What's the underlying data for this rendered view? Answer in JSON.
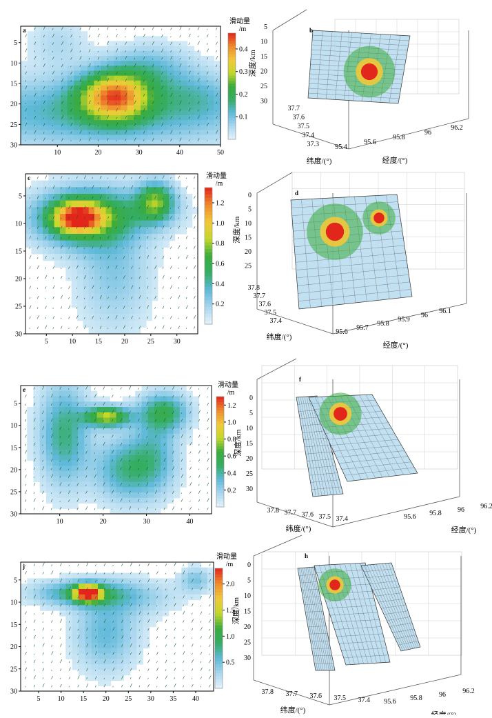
{
  "colors": {
    "colormap": [
      "#e6f3fb",
      "#a9d6ee",
      "#5fb9d9",
      "#35ad63",
      "#3aab3c",
      "#c6d82a",
      "#f1c83a",
      "#ee8a2c",
      "#e2261c"
    ],
    "grid": "#cfcfcf",
    "frame": "#000000",
    "arrow": "#1a5c2e"
  },
  "chart_data": [
    {
      "type": "heatmap",
      "label": "a",
      "x_ticks": [
        "10",
        "20",
        "30",
        "40",
        "50"
      ],
      "y_ticks": [
        "5",
        "10",
        "15",
        "20",
        "25",
        "30"
      ],
      "xlim": [
        1,
        50
      ],
      "ylim": [
        30,
        1
      ],
      "colorbar": {
        "title": "滑动量",
        "unit": "/m",
        "ticks": [
          "0.1",
          "0.2",
          "0.3",
          "0.4"
        ],
        "range": [
          0,
          0.47
        ]
      },
      "patches": [
        {
          "x": 20,
          "y": 22,
          "sx": 28,
          "sy": 6,
          "peak": 0.14
        },
        {
          "x": 33,
          "y": 11,
          "sx": 7,
          "sy": 4,
          "peak": 0.09
        },
        {
          "x": 10,
          "y": 5,
          "sx": 5,
          "sy": 4,
          "peak": 0.05
        },
        {
          "x": 44,
          "y": 18,
          "sx": 6,
          "sy": 4,
          "peak": 0.06
        },
        {
          "x": 24,
          "y": 18,
          "sx": 6,
          "sy": 4.2,
          "peak": 0.34
        }
      ]
    },
    {
      "type": "heatmap",
      "label": "c",
      "x_ticks": [
        "5",
        "10",
        "15",
        "20",
        "25",
        "30"
      ],
      "y_ticks": [
        "5",
        "10",
        "15",
        "20",
        "25",
        "30"
      ],
      "xlim": [
        1,
        34
      ],
      "ylim": [
        30,
        1
      ],
      "colorbar": {
        "title": "滑动量",
        "unit": "/m",
        "ticks": [
          "0.2",
          "0.4",
          "0.6",
          "0.8",
          "1.0",
          "1.2"
        ],
        "range": [
          0,
          1.35
        ]
      },
      "patches": [
        {
          "x": 11,
          "y": 9,
          "sx": 6,
          "sy": 3.5,
          "peak": 0.7
        },
        {
          "x": 11,
          "y": 9,
          "sx": 3,
          "sy": 1.8,
          "peak": 0.75
        },
        {
          "x": 26,
          "y": 6,
          "sx": 2.5,
          "sy": 2.5,
          "peak": 0.65
        },
        {
          "x": 18,
          "y": 18,
          "sx": 5,
          "sy": 8,
          "peak": 0.25
        },
        {
          "x": 20,
          "y": 8,
          "sx": 8,
          "sy": 3,
          "peak": 0.2
        }
      ]
    },
    {
      "type": "heatmap",
      "label": "e",
      "x_ticks": [
        "10",
        "20",
        "30",
        "40"
      ],
      "y_ticks": [
        "5",
        "10",
        "15",
        "20",
        "25",
        "30"
      ],
      "xlim": [
        1,
        45
      ],
      "ylim": [
        30,
        1
      ],
      "colorbar": {
        "title": "滑动量",
        "unit": "/m",
        "ticks": [
          "0.2",
          "0.4",
          "0.6",
          "0.8",
          "1.0",
          "1.2"
        ],
        "range": [
          0,
          1.3
        ]
      },
      "patches": [
        {
          "x": 21,
          "y": 8,
          "sx": 3.5,
          "sy": 1.6,
          "peak": 0.8
        },
        {
          "x": 11,
          "y": 12,
          "sx": 4,
          "sy": 8,
          "peak": 0.45
        },
        {
          "x": 25,
          "y": 20,
          "sx": 5,
          "sy": 5,
          "peak": 0.4
        },
        {
          "x": 34,
          "y": 7,
          "sx": 4,
          "sy": 3,
          "peak": 0.5
        },
        {
          "x": 32,
          "y": 17,
          "sx": 4,
          "sy": 6,
          "peak": 0.3
        }
      ]
    },
    {
      "type": "heatmap",
      "label": "j",
      "x_ticks": [
        "5",
        "10",
        "15",
        "20",
        "25",
        "30",
        "35",
        "40"
      ],
      "y_ticks": [
        "5",
        "10",
        "15",
        "20",
        "25",
        "30"
      ],
      "xlim": [
        1,
        44
      ],
      "ylim": [
        30,
        1
      ],
      "colorbar": {
        "title": "滑动量",
        "unit": "/m",
        "ticks": [
          "0.5",
          "1.0",
          "1.5",
          "2.0"
        ],
        "range": [
          0,
          2.3
        ]
      },
      "patches": [
        {
          "x": 16,
          "y": 8,
          "sx": 2,
          "sy": 1.3,
          "peak": 1.9
        },
        {
          "x": 14,
          "y": 8,
          "sx": 7,
          "sy": 2,
          "peak": 0.8
        },
        {
          "x": 20,
          "y": 17,
          "sx": 5,
          "sy": 6,
          "peak": 0.55
        },
        {
          "x": 40,
          "y": 5,
          "sx": 2.5,
          "sy": 2,
          "peak": 0.45
        },
        {
          "x": 27,
          "y": 9,
          "sx": 7,
          "sy": 3,
          "peak": 0.3
        }
      ]
    }
  ],
  "panels3d": [
    {
      "label": "b",
      "ylabel": "深度/km",
      "depth_ticks": [
        "5",
        "10",
        "15",
        "20",
        "25",
        "30"
      ],
      "lat_label": "纬度/(°)",
      "lat_ticks": [
        "37.7",
        "37.6",
        "37.5",
        "37.4",
        "37.3"
      ],
      "lon_label": "经度/(°)",
      "lon_ticks": [
        "95.4",
        "95.6",
        "95.8",
        "96",
        "96.2"
      ]
    },
    {
      "label": "d",
      "ylabel": "深度/km",
      "depth_ticks": [
        "0",
        "5",
        "10",
        "15",
        "20",
        "25"
      ],
      "lat_label": "纬度/(°)",
      "lat_ticks": [
        "37.8",
        "37.7",
        "37.6",
        "37.5",
        "37.4"
      ],
      "lon_label": "经度/(°)",
      "lon_ticks": [
        "95.6",
        "95.7",
        "95.8",
        "95.9",
        "96",
        "96.1"
      ]
    },
    {
      "label": "f",
      "ylabel": "深度/km",
      "depth_ticks": [
        "0",
        "5",
        "10",
        "15",
        "20",
        "25",
        "30"
      ],
      "lat_label": "纬度/(°)",
      "lat_ticks": [
        "37.8",
        "37.7",
        "37.6",
        "37.5",
        "37.4"
      ],
      "lon_label": "经度/(°)",
      "lon_ticks": [
        "95.6",
        "95.8",
        "96",
        "96.2"
      ]
    },
    {
      "label": "h",
      "ylabel": "深度/km",
      "depth_ticks": [
        "0",
        "5",
        "10",
        "15",
        "20",
        "25",
        "30"
      ],
      "lat_label": "纬度/(°)",
      "lat_ticks": [
        "37.8",
        "37.7",
        "37.6",
        "37.5",
        "37.4"
      ],
      "lon_label": "经度/(°)",
      "lon_ticks": [
        "95.6",
        "95.8",
        "96",
        "96.2"
      ]
    }
  ]
}
